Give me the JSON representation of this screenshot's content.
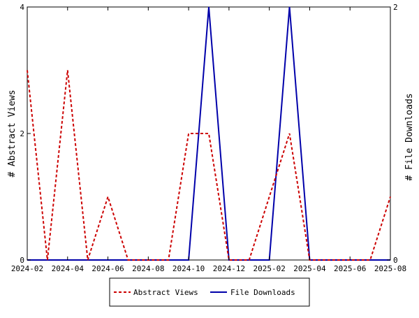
{
  "chart_data": {
    "type": "line",
    "title": "",
    "x_categories": [
      "2024-02",
      "2024-03",
      "2024-04",
      "2024-05",
      "2024-06",
      "2024-07",
      "2024-08",
      "2024-09",
      "2024-10",
      "2024-11",
      "2024-12",
      "2025-01",
      "2025-02",
      "2025-03",
      "2025-04",
      "2025-05",
      "2025-06",
      "2025-07",
      "2025-08"
    ],
    "x_tick_labels": [
      "2024-02",
      "2024-04",
      "2024-06",
      "2024-08",
      "2024-10",
      "2024-12",
      "2025-02",
      "2025-04",
      "2025-06",
      "2025-08"
    ],
    "y_left": {
      "label": "# Abstract Views",
      "range": [
        0,
        4
      ],
      "ticks": [
        "0",
        "2",
        "4"
      ]
    },
    "y_right": {
      "label": "# File Downloads",
      "range": [
        0,
        2
      ],
      "ticks": [
        "0",
        "2"
      ]
    },
    "series": [
      {
        "name": "Abstract Views",
        "axis": "left",
        "color": "#cc0000",
        "style": "dashed",
        "values": [
          3,
          0,
          3,
          0,
          1,
          0,
          0,
          0,
          2,
          2,
          0,
          0,
          1,
          2,
          0,
          0,
          0,
          0,
          1
        ]
      },
      {
        "name": "File Downloads",
        "axis": "right",
        "color": "#0000aa",
        "style": "solid",
        "values": [
          0,
          0,
          0,
          0,
          0,
          0,
          0,
          0,
          0,
          2,
          0,
          0,
          0,
          2,
          0,
          0,
          0,
          0,
          0
        ]
      }
    ],
    "legend_position": "bottom",
    "grid": false
  }
}
